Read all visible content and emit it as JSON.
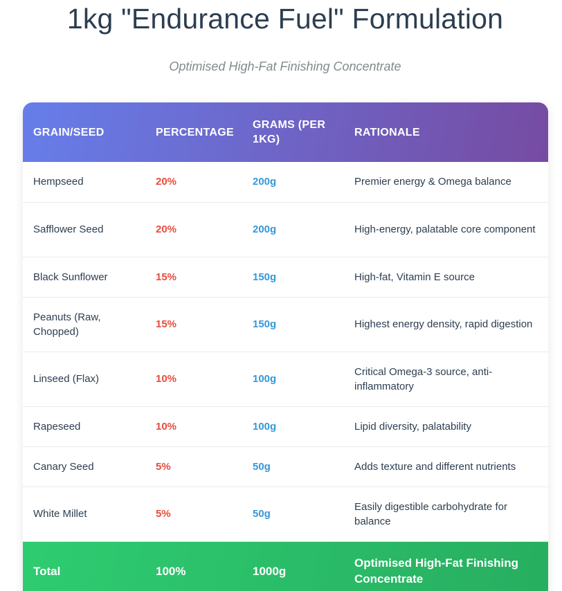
{
  "title": "1kg \"Endurance Fuel\" Formulation",
  "subtitle": "Optimised High-Fat Finishing Concentrate",
  "table": {
    "headers": [
      "Grain/Seed",
      "Percentage",
      "Grams (per 1kg)",
      "Rationale"
    ],
    "rows": [
      {
        "name": "Hempseed",
        "percentage": "20%",
        "grams": "200g",
        "rationale": "Premier energy & Omega balance"
      },
      {
        "name": "Safflower Seed",
        "percentage": "20%",
        "grams": "200g",
        "rationale": "High-energy, palatable core component"
      },
      {
        "name": "Black Sunflower",
        "percentage": "15%",
        "grams": "150g",
        "rationale": "High-fat, Vitamin E source"
      },
      {
        "name": "Peanuts (Raw, Chopped)",
        "percentage": "15%",
        "grams": "150g",
        "rationale": "Highest energy density, rapid digestion"
      },
      {
        "name": "Linseed (Flax)",
        "percentage": "10%",
        "grams": "100g",
        "rationale": "Critical Omega-3 source, anti-inflammatory"
      },
      {
        "name": "Rapeseed",
        "percentage": "10%",
        "grams": "100g",
        "rationale": "Lipid diversity, palatability"
      },
      {
        "name": "Canary Seed",
        "percentage": "5%",
        "grams": "50g",
        "rationale": "Adds texture and different nutrients"
      },
      {
        "name": "White Millet",
        "percentage": "5%",
        "grams": "50g",
        "rationale": "Easily digestible carbohydrate for balance"
      }
    ],
    "total": {
      "name": "Total",
      "percentage": "100%",
      "grams": "1000g",
      "rationale": "Optimised High-Fat Finishing Concentrate"
    }
  },
  "colors": {
    "header_gradient_start": "#667eea",
    "header_gradient_end": "#764ba2",
    "percentage": "#e74c3c",
    "grams": "#3498db",
    "total_gradient_start": "#2ecc71",
    "total_gradient_end": "#27ae60",
    "title": "#2c3e50",
    "subtitle": "#7f8c8d"
  }
}
